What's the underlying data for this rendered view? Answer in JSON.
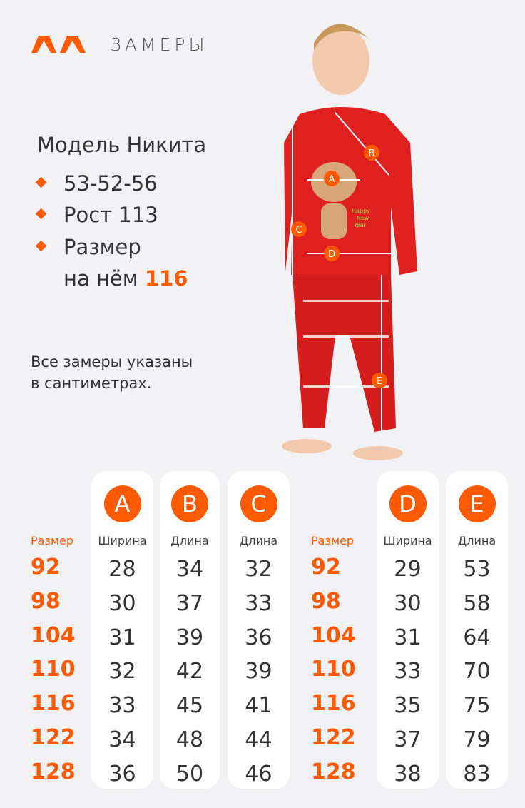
{
  "header": {
    "title": "ЗАМЕРЫ",
    "brand_color": "#ff5a00"
  },
  "model": {
    "name": "Модель Никита",
    "bullets": [
      {
        "text": "53-52-56"
      },
      {
        "text": "Рост 113"
      },
      {
        "text": "Размер",
        "text2": "на нём ",
        "highlight": "116"
      }
    ]
  },
  "note": {
    "line1": "Все замеры указаны",
    "line2": "в сантиметрах."
  },
  "photo": {
    "shirt_print": [
      "Happy",
      "New",
      "Year"
    ],
    "markers": [
      "A",
      "B",
      "C",
      "D",
      "E"
    ]
  },
  "table": {
    "size_label": "Размер",
    "sizes": [
      "92",
      "98",
      "104",
      "110",
      "116",
      "122",
      "128"
    ],
    "columns": [
      {
        "letter": "A",
        "label": "Ширина",
        "values": [
          "28",
          "30",
          "31",
          "32",
          "33",
          "34",
          "36"
        ]
      },
      {
        "letter": "B",
        "label": "Длина",
        "values": [
          "34",
          "37",
          "39",
          "42",
          "45",
          "48",
          "50"
        ]
      },
      {
        "letter": "C",
        "label": "Длина",
        "values": [
          "32",
          "33",
          "36",
          "39",
          "41",
          "44",
          "46"
        ]
      },
      {
        "letter": "D",
        "label": "Ширина",
        "values": [
          "29",
          "30",
          "31",
          "33",
          "35",
          "37",
          "38"
        ]
      },
      {
        "letter": "E",
        "label": "Длина",
        "values": [
          "53",
          "58",
          "64",
          "70",
          "75",
          "79",
          "83"
        ]
      }
    ]
  }
}
